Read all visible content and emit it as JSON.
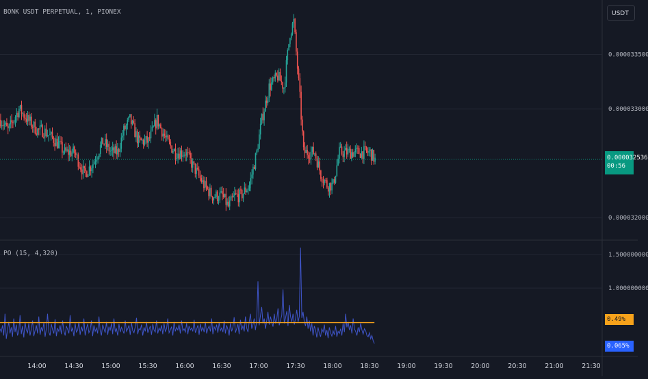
{
  "chart_title": "BONK USDT PERPETUAL, 1, PIONEX",
  "indicator_title": "PO (15, 4,320)",
  "currency_button": "USDT",
  "last_price": "0.000032536",
  "countdown": "00:56",
  "indicator_tags": {
    "orange": "0.49%",
    "blue": "0.065%"
  },
  "colors": {
    "up": "#26a69a",
    "down": "#ef5350",
    "oscillator": "#3f55c9",
    "signal_line": "#f7a21b",
    "grid": "#232733",
    "last_price": "#089981"
  },
  "chart_data": [
    {
      "type": "candlestick",
      "title": "BONK USDT PERPETUAL, 1, PIONEX",
      "x_ticks": [
        "14:00",
        "14:30",
        "15:00",
        "15:30",
        "16:00",
        "16:30",
        "17:00",
        "17:30",
        "18:00",
        "18:30",
        "19:00",
        "19:30",
        "20:00",
        "20:30",
        "21:00",
        "21:30"
      ],
      "y_ticks": [
        "0.000033500",
        "0.000033000",
        "0.000032000"
      ],
      "ylim": [
        3.18e-05,
        3.4e-05
      ],
      "last_price": 3.2536e-05,
      "close_path": [
        [
          "13:30",
          3.29e-05
        ],
        [
          "13:36",
          3.28e-05
        ],
        [
          "13:45",
          3.3e-05
        ],
        [
          "13:52",
          3.29e-05
        ],
        [
          "14:00",
          3.28e-05
        ],
        [
          "14:05",
          3.28e-05
        ],
        [
          "14:15",
          3.27e-05
        ],
        [
          "14:22",
          3.26e-05
        ],
        [
          "14:30",
          3.26e-05
        ],
        [
          "14:38",
          3.24e-05
        ],
        [
          "14:45",
          3.25e-05
        ],
        [
          "14:53",
          3.27e-05
        ],
        [
          "15:00",
          3.26e-05
        ],
        [
          "15:05",
          3.26e-05
        ],
        [
          "15:10",
          3.28e-05
        ],
        [
          "15:15",
          3.29e-05
        ],
        [
          "15:22",
          3.27e-05
        ],
        [
          "15:30",
          3.27e-05
        ],
        [
          "15:37",
          3.29e-05
        ],
        [
          "15:45",
          3.27e-05
        ],
        [
          "15:52",
          3.26e-05
        ],
        [
          "16:00",
          3.26e-05
        ],
        [
          "16:05",
          3.25e-05
        ],
        [
          "16:10",
          3.24e-05
        ],
        [
          "16:15",
          3.23e-05
        ],
        [
          "16:22",
          3.22e-05
        ],
        [
          "16:30",
          3.22e-05
        ],
        [
          "16:35",
          3.21e-05
        ],
        [
          "16:40",
          3.22e-05
        ],
        [
          "16:45",
          3.22e-05
        ],
        [
          "16:52",
          3.23e-05
        ],
        [
          "16:58",
          3.26e-05
        ],
        [
          "17:02",
          3.29e-05
        ],
        [
          "17:08",
          3.32e-05
        ],
        [
          "17:15",
          3.33e-05
        ],
        [
          "17:20",
          3.32e-05
        ],
        [
          "17:25",
          3.37e-05
        ],
        [
          "17:28",
          3.38e-05
        ],
        [
          "17:33",
          3.31e-05
        ],
        [
          "17:36",
          3.26e-05
        ],
        [
          "17:45",
          3.26e-05
        ],
        [
          "17:50",
          3.24e-05
        ],
        [
          "17:55",
          3.23e-05
        ],
        [
          "18:00",
          3.23e-05
        ],
        [
          "18:05",
          3.26e-05
        ],
        [
          "18:10",
          3.26e-05
        ],
        [
          "18:20",
          3.26e-05
        ],
        [
          "18:25",
          3.26e-05
        ],
        [
          "18:30",
          3.26e-05
        ],
        [
          "18:34",
          3.253e-05
        ]
      ]
    },
    {
      "type": "line",
      "title": "PO (15, 4,320)",
      "y_ticks": [
        "1.500000000",
        "1.000000000"
      ],
      "ylim": [
        0.0,
        1.7
      ],
      "series": [
        {
          "values": [
            0.4,
            0.35,
            0.45,
            0.3,
            0.62,
            0.25,
            0.38,
            0.5,
            0.33,
            0.42,
            0.28,
            0.55,
            0.35,
            0.46,
            0.3,
            0.36,
            0.6,
            0.32,
            0.44,
            0.27,
            0.5,
            0.38,
            0.34,
            0.48,
            0.3,
            0.4,
            0.52,
            0.29,
            0.37,
            0.45,
            0.33,
            0.58,
            0.31,
            0.42,
            0.36,
            0.49,
            0.28,
            0.4,
            0.62,
            0.35,
            0.3,
            0.47,
            0.38,
            0.33,
            0.54,
            0.29,
            0.41,
            0.36,
            0.45,
            0.32,
            0.52,
            0.37,
            0.3,
            0.44,
            0.39,
            0.33,
            0.6,
            0.36,
            0.41,
            0.29,
            0.48,
            0.35,
            0.38,
            0.5,
            0.31,
            0.43,
            0.36,
            0.55,
            0.3,
            0.4,
            0.47,
            0.34,
            0.38,
            0.52,
            0.29,
            0.45,
            0.36,
            0.41,
            0.33,
            0.58,
            0.37,
            0.3,
            0.46,
            0.4,
            0.34,
            0.5,
            0.31,
            0.43,
            0.37,
            0.48,
            0.32,
            0.55,
            0.36,
            0.4,
            0.3,
            0.47,
            0.35,
            0.42,
            0.38,
            0.33,
            0.52,
            0.36,
            0.4,
            0.45,
            0.31,
            0.49,
            0.37,
            0.34,
            0.43,
            0.56,
            0.32,
            0.4,
            0.38,
            0.46,
            0.3,
            0.42,
            0.36,
            0.5,
            0.34,
            0.39,
            0.44,
            0.31,
            0.47,
            0.38,
            0.35,
            0.52,
            0.33,
            0.41,
            0.37,
            0.45,
            0.32,
            0.48,
            0.36,
            0.4,
            0.55,
            0.34,
            0.38,
            0.43,
            0.3,
            0.5,
            0.36,
            0.42,
            0.38,
            0.46,
            0.33,
            0.52,
            0.37,
            0.4,
            0.35,
            0.48,
            0.32,
            0.44,
            0.38,
            0.41,
            0.36,
            0.53,
            0.34,
            0.39,
            0.45,
            0.31,
            0.47,
            0.37,
            0.42,
            0.35,
            0.5,
            0.33,
            0.4,
            0.44,
            0.36,
            0.55,
            0.32,
            0.43,
            0.38,
            0.46,
            0.34,
            0.49,
            0.37,
            0.41,
            0.35,
            0.52,
            0.33,
            0.45,
            0.39,
            0.3,
            0.48,
            0.36,
            0.42,
            0.57,
            0.34,
            0.4,
            0.47,
            0.32,
            0.53,
            0.38,
            0.44,
            0.36,
            0.58,
            0.41,
            0.35,
            0.5,
            0.62,
            0.4,
            0.46,
            0.55,
            0.38,
            0.52,
            1.1,
            0.45,
            0.6,
            0.72,
            0.48,
            0.55,
            0.4,
            0.52,
            0.65,
            0.46,
            0.58,
            0.5,
            0.43,
            0.62,
            0.48,
            0.54,
            0.7,
            0.45,
            0.52,
            0.6,
            0.98,
            0.48,
            0.56,
            0.66,
            0.44,
            0.75,
            0.58,
            0.5,
            0.62,
            0.46,
            0.55,
            0.68,
            0.5,
            0.58,
            1.6,
            0.56,
            0.65,
            0.5,
            0.44,
            0.58,
            0.4,
            0.52,
            0.36,
            0.48,
            0.3,
            0.44,
            0.38,
            0.27,
            0.42,
            0.33,
            0.28,
            0.4,
            0.35,
            0.46,
            0.3,
            0.38,
            0.26,
            0.42,
            0.34,
            0.29,
            0.37,
            0.31,
            0.44,
            0.28,
            0.36,
            0.33,
            0.4,
            0.3,
            0.48,
            0.35,
            0.62,
            0.42,
            0.5,
            0.38,
            0.45,
            0.33,
            0.55,
            0.4,
            0.36,
            0.3,
            0.42,
            0.35,
            0.48,
            0.38,
            0.32,
            0.4,
            0.37,
            0.3,
            0.28,
            0.34,
            0.25,
            0.3,
            0.22,
            0.18
          ]
        },
        {
          "values": [
            0.49
          ]
        }
      ]
    }
  ]
}
